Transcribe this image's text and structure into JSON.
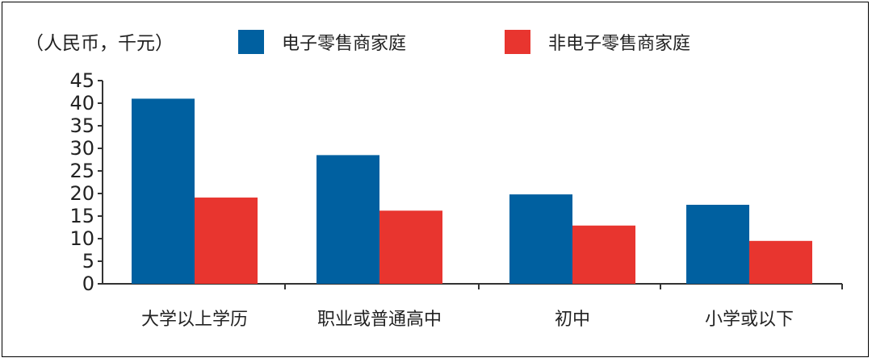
{
  "chart_data": {
    "type": "bar",
    "unit_label": "（人民币，千元）",
    "categories": [
      "大学以上学历",
      "职业或普通高中",
      "初中",
      "小学或以下"
    ],
    "series": [
      {
        "name": "电子零售商家庭",
        "color": "#0060A0",
        "values": [
          41,
          28.5,
          19.8,
          17.5
        ]
      },
      {
        "name": "非电子零售商家庭",
        "color": "#E8352F",
        "values": [
          19.1,
          16.2,
          12.9,
          9.5
        ]
      }
    ],
    "ylim": [
      0,
      45
    ],
    "yticks": [
      0,
      5,
      10,
      15,
      20,
      25,
      30,
      35,
      40,
      45
    ],
    "legend_position": "top",
    "grid": false
  }
}
